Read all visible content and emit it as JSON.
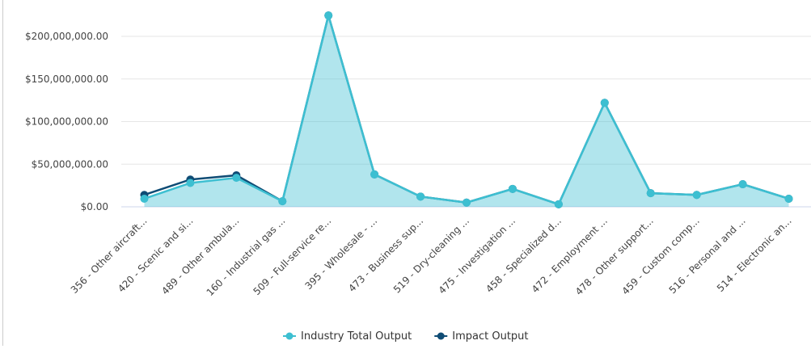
{
  "chart_data": {
    "type": "area",
    "categories": [
      "356 - Other aircraft...",
      "420 - Scenic and si...",
      "489 - Other ambula...",
      "160 - Industrial gas ...",
      "509 - Full-service re...",
      "395 - Wholesale - ...",
      "473 - Business sup...",
      "519 - Dry-cleaning ...",
      "475 - Investigation ...",
      "458 - Specialized d...",
      "472 - Employment ...",
      "478 - Other support...",
      "459 - Custom comp...",
      "516 - Personal and ...",
      "514 - Electronic an..."
    ],
    "series": [
      {
        "name": "Industry Total Output",
        "color": "#3dbfd1",
        "values": [
          9500000,
          28000000,
          34000000,
          6500000,
          224500000,
          38000000,
          12000000,
          5000000,
          21000000,
          3000000,
          122000000,
          16000000,
          14000000,
          26500000,
          9500000
        ]
      },
      {
        "name": "Impact Output",
        "color": "#0f4c75",
        "values": [
          14000000,
          32000000,
          37000000,
          6500000,
          224500000,
          38000000,
          12000000,
          5000000,
          21000000,
          3000000,
          122000000,
          16000000,
          14000000,
          26500000,
          9500000
        ]
      }
    ],
    "ylim": [
      0,
      200000000
    ],
    "yticks": [
      {
        "value": 0,
        "label": "$0.00"
      },
      {
        "value": 50000000,
        "label": "$50,000,000.00"
      },
      {
        "value": 100000000,
        "label": "$100,000,000.00"
      },
      {
        "value": 150000000,
        "label": "$150,000,000.00"
      },
      {
        "value": 200000000,
        "label": "$200,000,000.00"
      }
    ],
    "grid": true,
    "legend": "bottom"
  }
}
